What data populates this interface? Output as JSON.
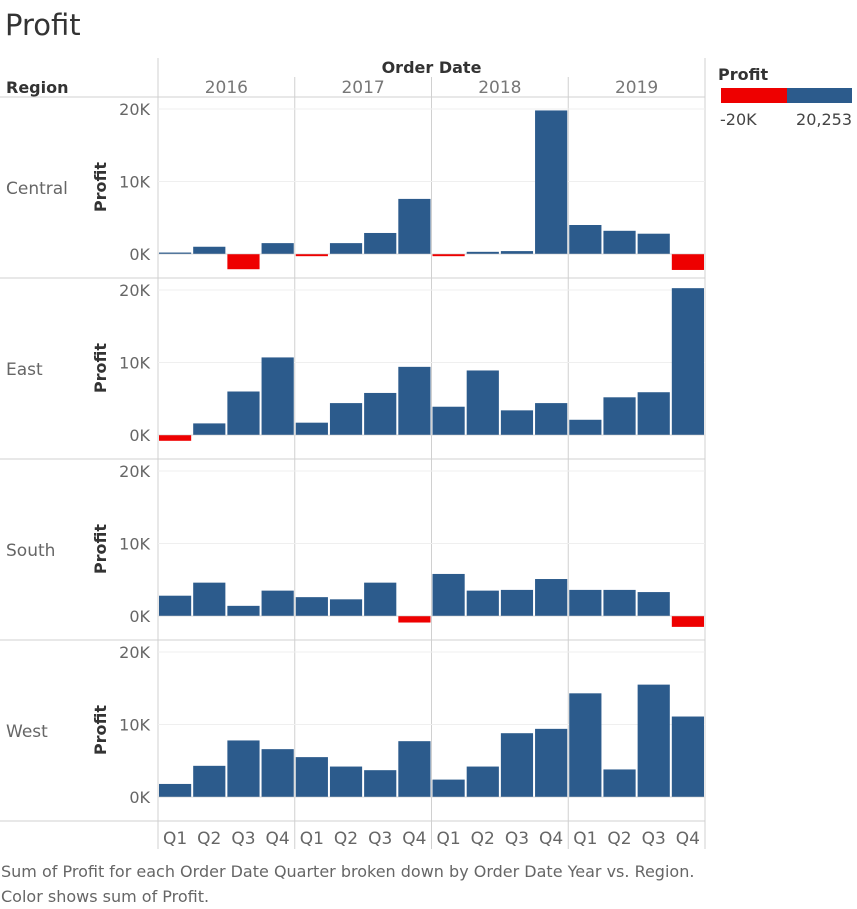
{
  "title": "Profit",
  "caption": "Sum of Profit for each Order Date Quarter broken down by Order Date Year vs. Region.  Color shows sum of Profit.",
  "headers": {
    "region": "Region",
    "order_date": "Order Date"
  },
  "legend": {
    "title": "Profit",
    "min_label": "-20K",
    "max_label": "20,253",
    "negative_color": "#ee0000",
    "positive_color": "#2c5b8c"
  },
  "chart_data": {
    "type": "bar",
    "title": "Profit",
    "xlabel": "Order Date",
    "ylabel": "Profit",
    "years": [
      "2016",
      "2017",
      "2018",
      "2019"
    ],
    "quarters": [
      "Q1",
      "Q2",
      "Q3",
      "Q4"
    ],
    "ylim": [
      -3000,
      21000
    ],
    "yticks": [
      0,
      10000,
      20000
    ],
    "ytick_labels": [
      "0K",
      "10K",
      "20K"
    ],
    "row_label": "Region",
    "series": [
      {
        "name": "Central",
        "values": [
          200,
          1000,
          -2100,
          1500,
          -300,
          1500,
          2900,
          7600,
          -300,
          300,
          400,
          19800,
          4000,
          3200,
          2800,
          -2200
        ]
      },
      {
        "name": "East",
        "values": [
          -800,
          1600,
          6000,
          10700,
          1700,
          4400,
          5800,
          9400,
          3900,
          8900,
          3400,
          4400,
          2100,
          5200,
          5900,
          20253
        ]
      },
      {
        "name": "South",
        "values": [
          2800,
          4600,
          1400,
          3500,
          2600,
          2300,
          4600,
          -900,
          5800,
          3500,
          3600,
          5100,
          3600,
          3600,
          3300,
          -1500
        ]
      },
      {
        "name": "West",
        "values": [
          1800,
          4300,
          7800,
          6600,
          5500,
          4200,
          3700,
          7700,
          2400,
          4200,
          8800,
          9400,
          14300,
          3800,
          15500,
          11100
        ]
      }
    ]
  }
}
